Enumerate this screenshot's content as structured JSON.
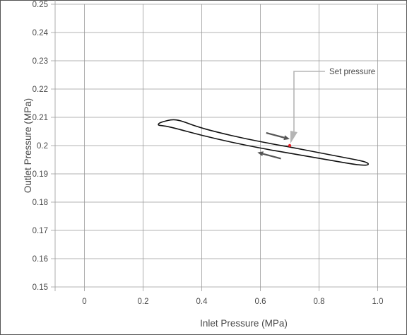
{
  "chart_data": {
    "type": "line",
    "title": "",
    "xlabel": "Inlet Pressure (MPa)",
    "ylabel": "Outlet Pressure (MPa)",
    "xlim": [
      -0.1,
      1.1
    ],
    "ylim": [
      0.15,
      0.25
    ],
    "x_ticks": [
      0,
      0.2,
      0.4,
      0.6,
      0.8,
      1.0
    ],
    "x_tick_labels": [
      "0",
      "0.2",
      "0.4",
      "0.6",
      "0.8",
      "1.0"
    ],
    "y_ticks": [
      0.15,
      0.16,
      0.17,
      0.18,
      0.19,
      0.2,
      0.21,
      0.22,
      0.23,
      0.24,
      0.25
    ],
    "y_tick_labels": [
      "0.15",
      "0.16",
      "0.17",
      "0.18",
      "0.19",
      "0.2",
      "0.21",
      "0.22",
      "0.23",
      "0.24",
      "0.25"
    ],
    "grid": true,
    "series": [
      {
        "color": "#111111",
        "points": [
          [
            0.27,
            0.2085
          ],
          [
            0.3,
            0.2093
          ],
          [
            0.33,
            0.2088
          ],
          [
            0.38,
            0.2068
          ],
          [
            0.45,
            0.2048
          ],
          [
            0.55,
            0.2024
          ],
          [
            0.65,
            0.2004
          ],
          [
            0.7,
            0.1995
          ],
          [
            0.8,
            0.1975
          ],
          [
            0.9,
            0.1955
          ],
          [
            0.95,
            0.1945
          ],
          [
            0.97,
            0.1937
          ],
          [
            0.965,
            0.193
          ],
          [
            0.93,
            0.1932
          ],
          [
            0.85,
            0.1946
          ],
          [
            0.7,
            0.1973
          ],
          [
            0.6,
            0.1991
          ],
          [
            0.5,
            0.2012
          ],
          [
            0.4,
            0.2036
          ],
          [
            0.3,
            0.2064
          ],
          [
            0.27,
            0.207
          ],
          [
            0.25,
            0.2072
          ],
          [
            0.255,
            0.208
          ],
          [
            0.27,
            0.2085
          ]
        ]
      }
    ],
    "set_point": {
      "x": 0.7,
      "y": 0.2,
      "color": "#e8222a"
    },
    "annotation": {
      "text": "Set pressure",
      "x": 0.7,
      "y": 0.2
    },
    "arrows": [
      {
        "from": [
          0.62,
          0.2045
        ],
        "to": [
          0.7,
          0.2023
        ],
        "direction": "increasing"
      },
      {
        "from": [
          0.67,
          0.1954
        ],
        "to": [
          0.59,
          0.1976
        ],
        "direction": "decreasing"
      }
    ],
    "colors": {
      "grid": "#9a9a9a",
      "arrow": "#555555",
      "leader": "#b5b5b5"
    }
  }
}
